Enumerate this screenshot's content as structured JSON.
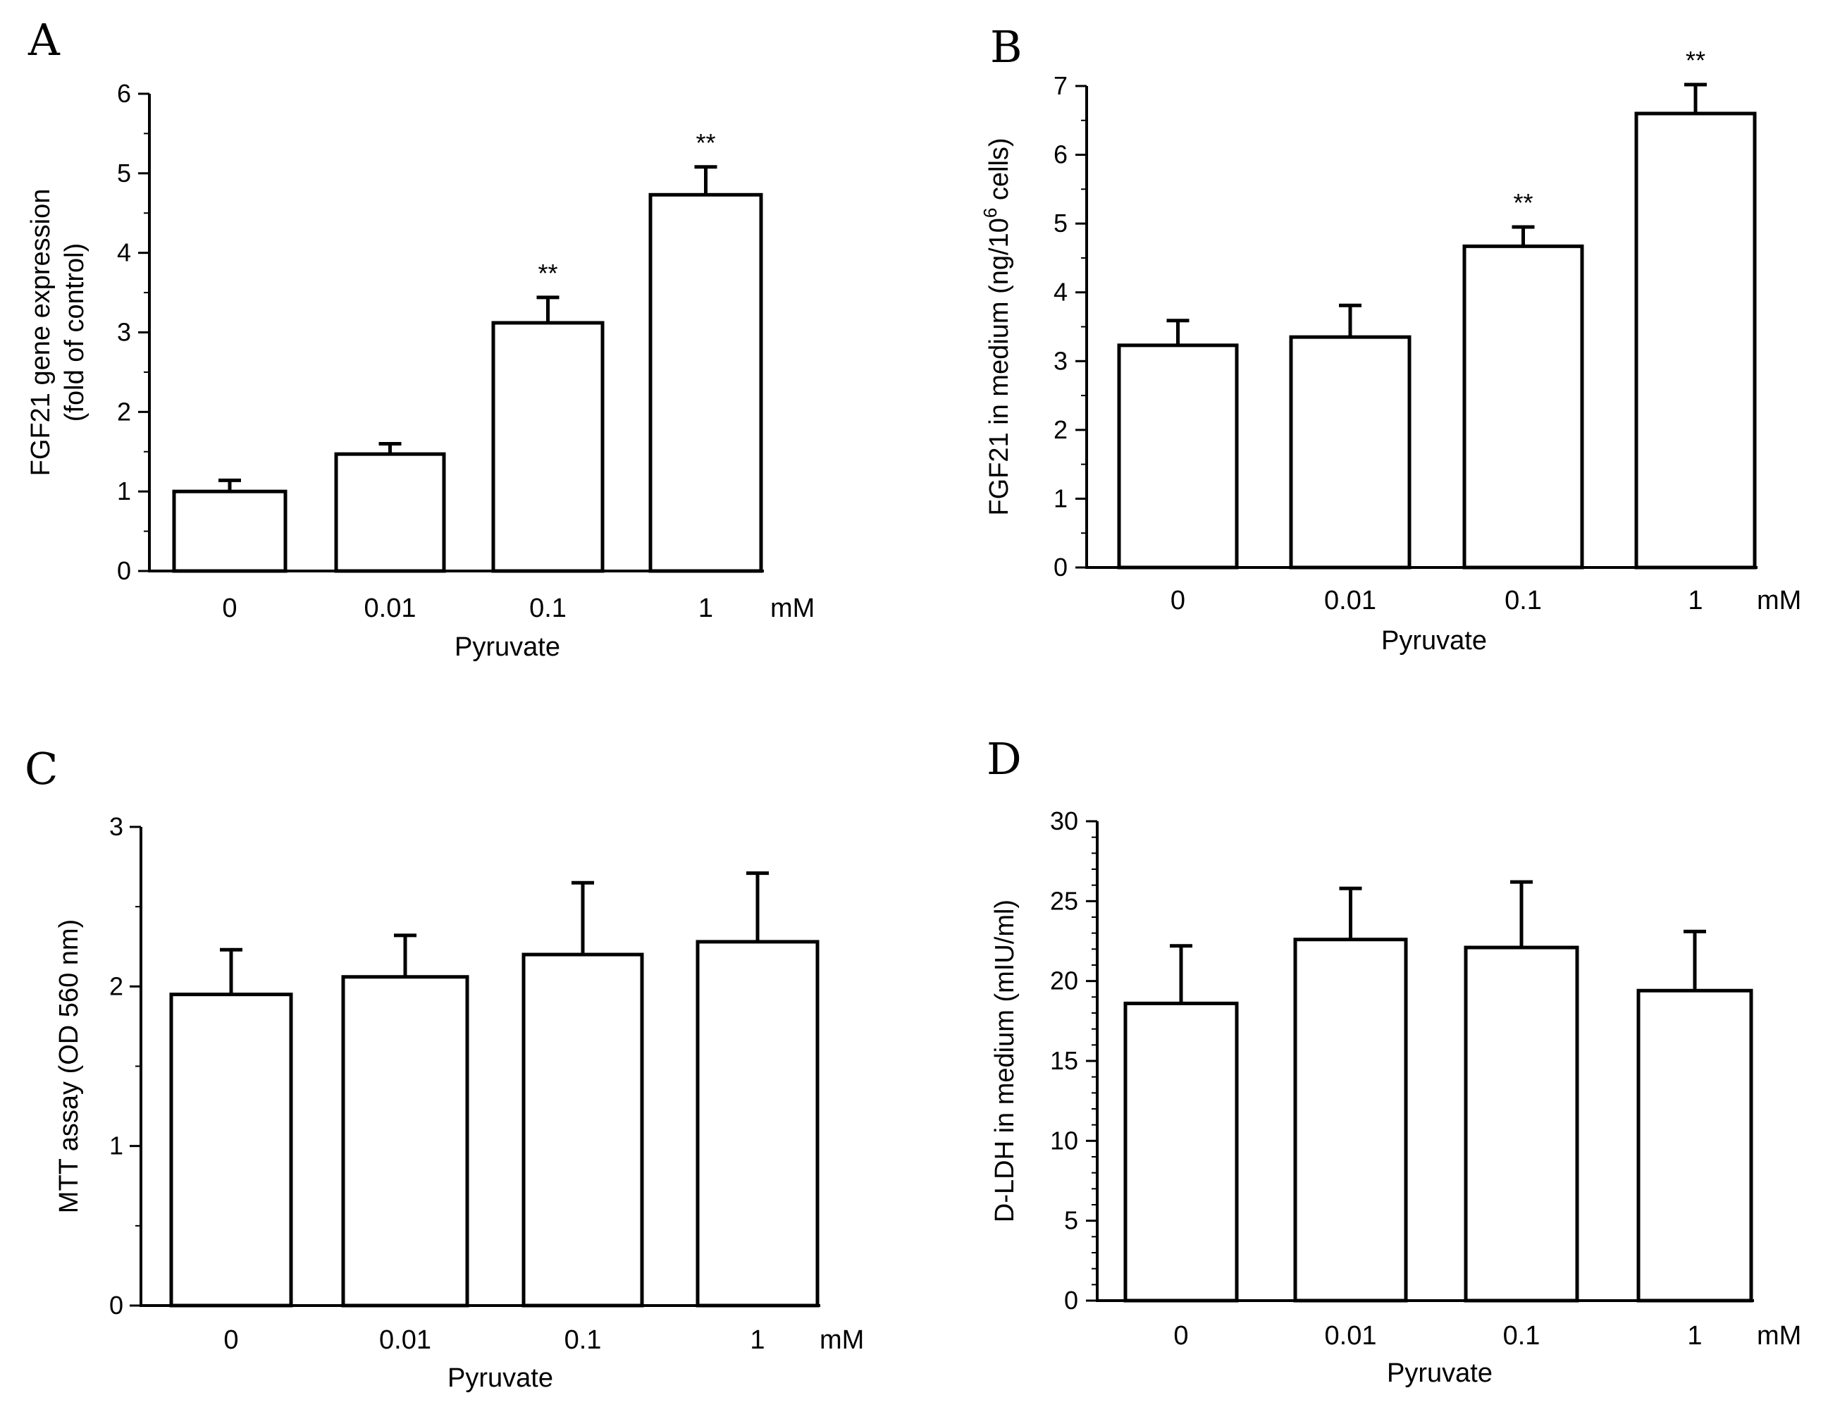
{
  "chart_data": [
    {
      "panel": "A",
      "type": "bar",
      "categories": [
        "0",
        "0.01",
        "0.1",
        "1"
      ],
      "unit_label": "mM",
      "xlabel": "Pyruvate",
      "ylabel_lines": [
        "FGF21 gene expression",
        "(fold of control)"
      ],
      "ylim": [
        0,
        6
      ],
      "yticks": [
        0,
        1,
        2,
        3,
        4,
        5,
        6
      ],
      "values": [
        1.0,
        1.47,
        3.12,
        4.73
      ],
      "errors": [
        0.14,
        0.13,
        0.32,
        0.35
      ],
      "significance": [
        "",
        "",
        "**",
        "**"
      ]
    },
    {
      "panel": "B",
      "type": "bar",
      "categories": [
        "0",
        "0.01",
        "0.1",
        "1"
      ],
      "unit_label": "mM",
      "xlabel": "Pyruvate",
      "ylabel_parts": [
        "FGF21 in medium (ng/10",
        "6",
        " cells)"
      ],
      "ylim": [
        0,
        7
      ],
      "yticks": [
        0,
        1,
        2,
        3,
        4,
        5,
        6,
        7
      ],
      "values": [
        3.23,
        3.35,
        4.67,
        6.6
      ],
      "errors": [
        0.36,
        0.46,
        0.28,
        0.42
      ],
      "significance": [
        "",
        "",
        "**",
        "**"
      ]
    },
    {
      "panel": "C",
      "type": "bar",
      "categories": [
        "0",
        "0.01",
        "0.1",
        "1"
      ],
      "unit_label": "mM",
      "xlabel": "Pyruvate",
      "ylabel_lines": [
        "MTT assay (OD 560 nm)"
      ],
      "ylim": [
        0,
        3
      ],
      "yticks": [
        0,
        1,
        2,
        3
      ],
      "values": [
        1.95,
        2.06,
        2.2,
        2.28
      ],
      "errors": [
        0.28,
        0.26,
        0.45,
        0.43
      ],
      "significance": [
        "",
        "",
        "",
        ""
      ]
    },
    {
      "panel": "D",
      "type": "bar",
      "categories": [
        "0",
        "0.01",
        "0.1",
        "1"
      ],
      "unit_label": "mM",
      "xlabel": "Pyruvate",
      "ylabel_lines": [
        "D-LDH in medium (mIU/ml)"
      ],
      "ylim": [
        0,
        30
      ],
      "yticks": [
        0,
        5,
        10,
        15,
        20,
        25,
        30
      ],
      "values": [
        18.6,
        22.6,
        22.1,
        19.4
      ],
      "errors": [
        3.6,
        3.2,
        4.1,
        3.7
      ],
      "significance": [
        "",
        "",
        "",
        ""
      ]
    }
  ]
}
